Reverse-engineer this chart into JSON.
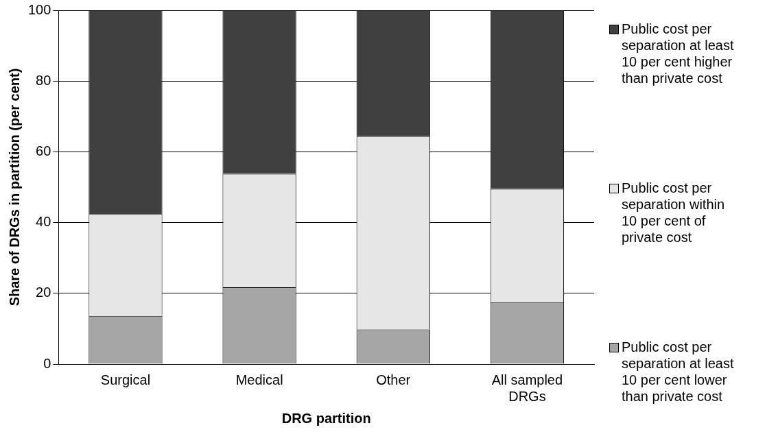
{
  "chart_data": {
    "type": "bar",
    "stacked": true,
    "xlabel": "DRG partition",
    "ylabel": "Share of DRGs in partition (per cent)",
    "categories": [
      "Surgical",
      "Medical",
      "Other",
      "All sampled DRGs"
    ],
    "series": [
      {
        "name": "Public cost per separation at least 10 per cent lower than private cost",
        "color": "#a6a6a6",
        "values": [
          13.6,
          21.7,
          9.8,
          17.5
        ]
      },
      {
        "name": "Public cost per separation within 10 per cent of private cost",
        "color": "#e6e6e6",
        "values": [
          28.8,
          32.1,
          54.6,
          32.0
        ]
      },
      {
        "name": "Public cost per separation at least 10 per cent higher than private cost",
        "color": "#404040",
        "values": [
          57.6,
          46.2,
          35.6,
          50.5
        ]
      }
    ],
    "ylim": [
      0,
      100
    ],
    "yticks": [
      0,
      20,
      40,
      60,
      80,
      100
    ],
    "grid": "y",
    "legend": "right"
  }
}
